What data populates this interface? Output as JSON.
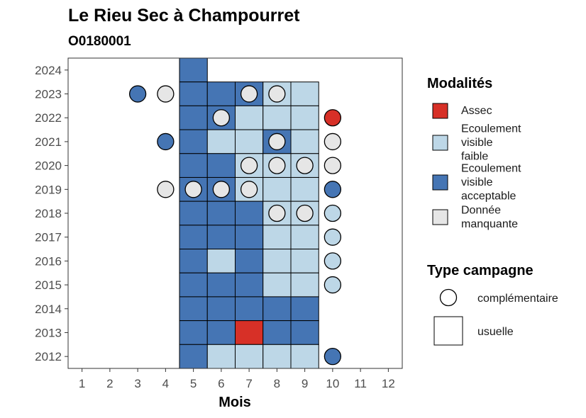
{
  "chart_data": {
    "type": "heatmap",
    "title": "Le Rieu Sec à Champourret",
    "subtitle": "O0180001",
    "xlabel": "Mois",
    "ylabel": "",
    "x_ticks": [
      "1",
      "2",
      "3",
      "4",
      "5",
      "6",
      "7",
      "8",
      "9",
      "10",
      "11",
      "12"
    ],
    "y_ticks": [
      "2012",
      "2013",
      "2014",
      "2015",
      "2016",
      "2017",
      "2018",
      "2019",
      "2020",
      "2021",
      "2022",
      "2023",
      "2024"
    ],
    "xlim": [
      0.5,
      12.5
    ],
    "ylim": [
      2011.5,
      2024.5
    ],
    "colors": {
      "assec": "#d73027",
      "faible": "#bdd7e7",
      "acceptable": "#4575b4",
      "manquante": "#e6e6e6"
    },
    "legend_modalites": {
      "title": "Modalités",
      "items": [
        {
          "key": "assec",
          "lines": [
            "Assec"
          ]
        },
        {
          "key": "faible",
          "lines": [
            "Ecoulement",
            "visible",
            "faible"
          ]
        },
        {
          "key": "acceptable",
          "lines": [
            "Ecoulement",
            "visible",
            "acceptable"
          ]
        },
        {
          "key": "manquante",
          "lines": [
            "Donnée",
            "manquante"
          ]
        }
      ]
    },
    "legend_campagne": {
      "title": "Type campagne",
      "items": [
        {
          "shape": "circle",
          "label": "complémentaire"
        },
        {
          "shape": "square",
          "label": "usuelle"
        }
      ]
    },
    "usuelle": [
      {
        "year": 2024,
        "month": 5,
        "value": "acceptable"
      },
      {
        "year": 2023,
        "month": 5,
        "value": "acceptable"
      },
      {
        "year": 2023,
        "month": 6,
        "value": "acceptable"
      },
      {
        "year": 2023,
        "month": 7,
        "value": "acceptable"
      },
      {
        "year": 2023,
        "month": 8,
        "value": "faible"
      },
      {
        "year": 2023,
        "month": 9,
        "value": "faible"
      },
      {
        "year": 2022,
        "month": 5,
        "value": "acceptable"
      },
      {
        "year": 2022,
        "month": 6,
        "value": "acceptable"
      },
      {
        "year": 2022,
        "month": 7,
        "value": "faible"
      },
      {
        "year": 2022,
        "month": 8,
        "value": "faible"
      },
      {
        "year": 2022,
        "month": 9,
        "value": "faible"
      },
      {
        "year": 2021,
        "month": 5,
        "value": "acceptable"
      },
      {
        "year": 2021,
        "month": 6,
        "value": "faible"
      },
      {
        "year": 2021,
        "month": 7,
        "value": "faible"
      },
      {
        "year": 2021,
        "month": 8,
        "value": "acceptable"
      },
      {
        "year": 2021,
        "month": 9,
        "value": "faible"
      },
      {
        "year": 2020,
        "month": 5,
        "value": "acceptable"
      },
      {
        "year": 2020,
        "month": 6,
        "value": "acceptable"
      },
      {
        "year": 2020,
        "month": 7,
        "value": "faible"
      },
      {
        "year": 2020,
        "month": 8,
        "value": "faible"
      },
      {
        "year": 2020,
        "month": 9,
        "value": "faible"
      },
      {
        "year": 2019,
        "month": 5,
        "value": "acceptable"
      },
      {
        "year": 2019,
        "month": 6,
        "value": "acceptable"
      },
      {
        "year": 2019,
        "month": 7,
        "value": "faible"
      },
      {
        "year": 2019,
        "month": 8,
        "value": "faible"
      },
      {
        "year": 2019,
        "month": 9,
        "value": "faible"
      },
      {
        "year": 2018,
        "month": 5,
        "value": "acceptable"
      },
      {
        "year": 2018,
        "month": 6,
        "value": "acceptable"
      },
      {
        "year": 2018,
        "month": 7,
        "value": "acceptable"
      },
      {
        "year": 2018,
        "month": 8,
        "value": "faible"
      },
      {
        "year": 2018,
        "month": 9,
        "value": "faible"
      },
      {
        "year": 2017,
        "month": 5,
        "value": "acceptable"
      },
      {
        "year": 2017,
        "month": 6,
        "value": "acceptable"
      },
      {
        "year": 2017,
        "month": 7,
        "value": "acceptable"
      },
      {
        "year": 2017,
        "month": 8,
        "value": "faible"
      },
      {
        "year": 2017,
        "month": 9,
        "value": "faible"
      },
      {
        "year": 2016,
        "month": 5,
        "value": "acceptable"
      },
      {
        "year": 2016,
        "month": 6,
        "value": "faible"
      },
      {
        "year": 2016,
        "month": 7,
        "value": "acceptable"
      },
      {
        "year": 2016,
        "month": 8,
        "value": "faible"
      },
      {
        "year": 2016,
        "month": 9,
        "value": "faible"
      },
      {
        "year": 2015,
        "month": 5,
        "value": "acceptable"
      },
      {
        "year": 2015,
        "month": 6,
        "value": "acceptable"
      },
      {
        "year": 2015,
        "month": 7,
        "value": "acceptable"
      },
      {
        "year": 2015,
        "month": 8,
        "value": "faible"
      },
      {
        "year": 2015,
        "month": 9,
        "value": "faible"
      },
      {
        "year": 2014,
        "month": 5,
        "value": "acceptable"
      },
      {
        "year": 2014,
        "month": 6,
        "value": "acceptable"
      },
      {
        "year": 2014,
        "month": 7,
        "value": "acceptable"
      },
      {
        "year": 2014,
        "month": 8,
        "value": "acceptable"
      },
      {
        "year": 2014,
        "month": 9,
        "value": "acceptable"
      },
      {
        "year": 2013,
        "month": 5,
        "value": "acceptable"
      },
      {
        "year": 2013,
        "month": 6,
        "value": "acceptable"
      },
      {
        "year": 2013,
        "month": 7,
        "value": "assec"
      },
      {
        "year": 2013,
        "month": 8,
        "value": "acceptable"
      },
      {
        "year": 2013,
        "month": 9,
        "value": "acceptable"
      },
      {
        "year": 2012,
        "month": 5,
        "value": "acceptable"
      },
      {
        "year": 2012,
        "month": 6,
        "value": "faible"
      },
      {
        "year": 2012,
        "month": 7,
        "value": "faible"
      },
      {
        "year": 2012,
        "month": 8,
        "value": "faible"
      },
      {
        "year": 2012,
        "month": 9,
        "value": "faible"
      }
    ],
    "complementaire": [
      {
        "year": 2023,
        "month": 3,
        "value": "acceptable"
      },
      {
        "year": 2023,
        "month": 4,
        "value": "manquante"
      },
      {
        "year": 2023,
        "month": 7,
        "value": "manquante"
      },
      {
        "year": 2023,
        "month": 8,
        "value": "manquante"
      },
      {
        "year": 2022,
        "month": 6,
        "value": "manquante"
      },
      {
        "year": 2022,
        "month": 10,
        "value": "assec"
      },
      {
        "year": 2021,
        "month": 4,
        "value": "acceptable"
      },
      {
        "year": 2021,
        "month": 8,
        "value": "manquante"
      },
      {
        "year": 2021,
        "month": 10,
        "value": "manquante"
      },
      {
        "year": 2020,
        "month": 7,
        "value": "manquante"
      },
      {
        "year": 2020,
        "month": 8,
        "value": "manquante"
      },
      {
        "year": 2020,
        "month": 9,
        "value": "manquante"
      },
      {
        "year": 2020,
        "month": 10,
        "value": "manquante"
      },
      {
        "year": 2019,
        "month": 4,
        "value": "manquante"
      },
      {
        "year": 2019,
        "month": 5,
        "value": "manquante"
      },
      {
        "year": 2019,
        "month": 6,
        "value": "manquante"
      },
      {
        "year": 2019,
        "month": 7,
        "value": "manquante"
      },
      {
        "year": 2019,
        "month": 10,
        "value": "acceptable"
      },
      {
        "year": 2018,
        "month": 8,
        "value": "manquante"
      },
      {
        "year": 2018,
        "month": 9,
        "value": "manquante"
      },
      {
        "year": 2018,
        "month": 10,
        "value": "faible"
      },
      {
        "year": 2017,
        "month": 10,
        "value": "faible"
      },
      {
        "year": 2016,
        "month": 10,
        "value": "faible"
      },
      {
        "year": 2015,
        "month": 10,
        "value": "faible"
      },
      {
        "year": 2012,
        "month": 10,
        "value": "acceptable"
      }
    ]
  }
}
